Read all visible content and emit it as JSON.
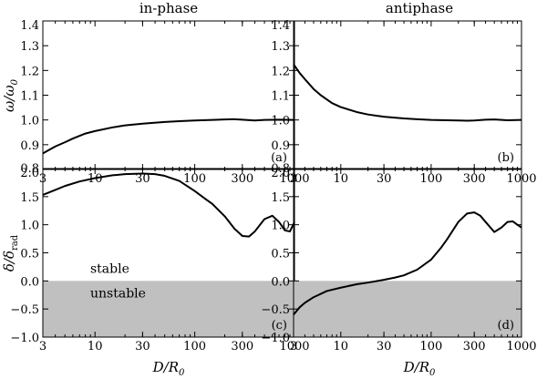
{
  "chart_data": [
    {
      "id": "a",
      "type": "line",
      "title": "in-phase",
      "panel_label": "(a)",
      "xlabel": "",
      "ylabel": "ω/ω0",
      "xscale": "log",
      "xlim": [
        3,
        1000
      ],
      "ylim": [
        0.8,
        1.4
      ],
      "xticks": [
        "3",
        "10",
        "30",
        "100",
        "300",
        "1000"
      ],
      "yticks": [
        "0.8",
        "0.9",
        "1.0",
        "1.1",
        "1.2",
        "1.3",
        "1.4"
      ],
      "series": [
        {
          "x": [
            3,
            3.5,
            4,
            5,
            6,
            8,
            10,
            15,
            20,
            30,
            50,
            70,
            100,
            150,
            200,
            250,
            300,
            400,
            500,
            700,
            1000
          ],
          "y": [
            0.865,
            0.88,
            0.893,
            0.91,
            0.925,
            0.945,
            0.955,
            0.97,
            0.978,
            0.985,
            0.992,
            0.995,
            0.998,
            1.0,
            1.002,
            1.003,
            1.001,
            0.998,
            1.0,
            1.001,
            1.0
          ]
        }
      ]
    },
    {
      "id": "b",
      "type": "line",
      "title": "antiphase",
      "panel_label": "(b)",
      "xlabel": "",
      "ylabel": "",
      "xscale": "log",
      "xlim": [
        3,
        1000
      ],
      "ylim": [
        0.8,
        1.4
      ],
      "xticks": [
        "3",
        "10",
        "30",
        "100",
        "300",
        "1000"
      ],
      "yticks": [
        "0.8",
        "0.9",
        "1.0",
        "1.1",
        "1.2",
        "1.3",
        "1.4"
      ],
      "series": [
        {
          "x": [
            3,
            3.5,
            4,
            5,
            6,
            8,
            10,
            15,
            20,
            30,
            50,
            70,
            100,
            150,
            200,
            250,
            300,
            400,
            500,
            700,
            1000
          ],
          "y": [
            1.225,
            1.19,
            1.165,
            1.125,
            1.1,
            1.068,
            1.052,
            1.032,
            1.022,
            1.013,
            1.006,
            1.003,
            1.0,
            0.999,
            0.998,
            0.997,
            0.998,
            1.001,
            1.002,
            0.999,
            1.0
          ]
        }
      ]
    },
    {
      "id": "c",
      "type": "line",
      "title": "",
      "panel_label": "(c)",
      "xlabel": "D/R0",
      "ylabel": "δ/δrad",
      "xscale": "log",
      "xlim": [
        3,
        1000
      ],
      "ylim": [
        -1.0,
        2.0
      ],
      "xticks": [
        "3",
        "10",
        "30",
        "100",
        "300",
        "1000"
      ],
      "yticks": [
        "−1.0",
        "−0.5",
        "0.0",
        "0.5",
        "1.0",
        "1.5",
        "2.0"
      ],
      "shaded_region": {
        "y_from": -1.0,
        "y_to": 0.0,
        "color": "#c0c0c0",
        "label_above": "stable",
        "label_below": "unstable"
      },
      "series": [
        {
          "x": [
            3,
            4,
            5,
            7,
            10,
            15,
            20,
            30,
            40,
            50,
            70,
            100,
            130,
            150,
            200,
            250,
            300,
            350,
            400,
            500,
            600,
            700,
            800,
            900,
            1000
          ],
          "y": [
            1.53,
            1.62,
            1.69,
            1.77,
            1.83,
            1.88,
            1.9,
            1.91,
            1.9,
            1.87,
            1.78,
            1.6,
            1.45,
            1.37,
            1.15,
            0.93,
            0.8,
            0.79,
            0.88,
            1.1,
            1.16,
            1.05,
            0.9,
            0.88,
            1.05
          ]
        }
      ]
    },
    {
      "id": "d",
      "type": "line",
      "title": "",
      "panel_label": "(d)",
      "xlabel": "D/R0",
      "ylabel": "",
      "xscale": "log",
      "xlim": [
        3,
        1000
      ],
      "ylim": [
        -1.0,
        2.0
      ],
      "xticks": [
        "3",
        "10",
        "30",
        "100",
        "300",
        "1000"
      ],
      "yticks": [
        "−1.0",
        "−0.5",
        "0.0",
        "0.5",
        "1.0",
        "1.5",
        "2.0"
      ],
      "shaded_region": {
        "y_from": -1.0,
        "y_to": 0.0,
        "color": "#c0c0c0"
      },
      "series": [
        {
          "x": [
            3,
            3.5,
            4,
            5,
            7,
            10,
            15,
            20,
            30,
            40,
            50,
            70,
            100,
            130,
            150,
            200,
            250,
            300,
            350,
            400,
            500,
            600,
            700,
            800,
            900,
            1000
          ],
          "y": [
            -0.6,
            -0.47,
            -0.39,
            -0.29,
            -0.18,
            -0.12,
            -0.06,
            -0.03,
            0.02,
            0.06,
            0.1,
            0.2,
            0.38,
            0.6,
            0.74,
            1.05,
            1.2,
            1.22,
            1.16,
            1.05,
            0.87,
            0.95,
            1.05,
            1.06,
            1.0,
            0.95
          ]
        }
      ]
    }
  ]
}
